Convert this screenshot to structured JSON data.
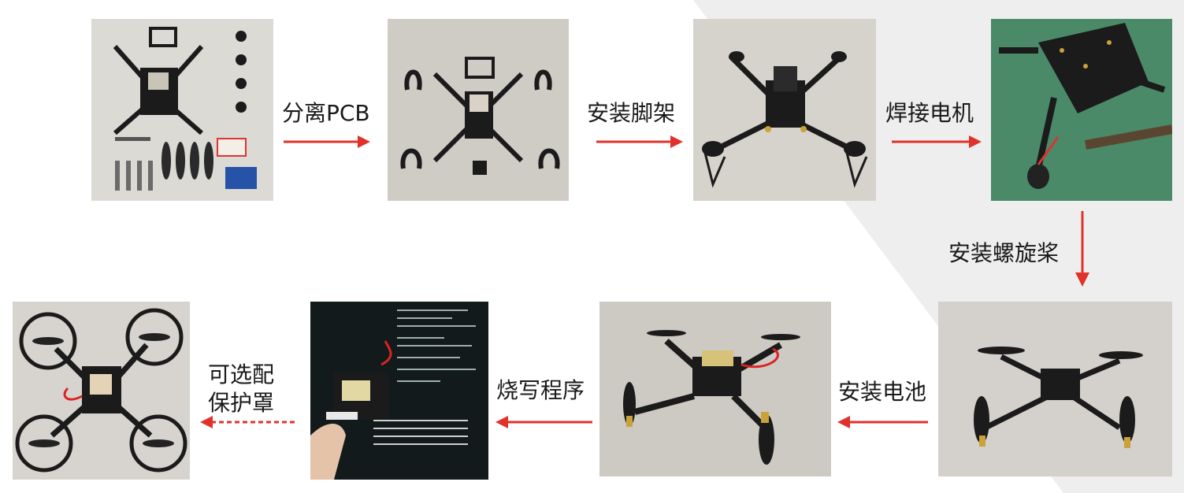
{
  "steps": [
    {
      "id": "separate-pcb",
      "label": "分离PCB"
    },
    {
      "id": "install-legs",
      "label": "安装脚架"
    },
    {
      "id": "solder-motors",
      "label": "焊接电机"
    },
    {
      "id": "install-propellers",
      "label": "安装螺旋桨"
    },
    {
      "id": "install-battery",
      "label": "安装电池"
    },
    {
      "id": "flash-program",
      "label": "烧写程序"
    },
    {
      "id": "optional-guard",
      "label": "可选配保护罩"
    }
  ],
  "colors": {
    "arrow": "#e0322b",
    "background_shade": "#eeeeee",
    "pcb": "#1b1b1b",
    "gold": "#c9a23a"
  },
  "icons": [
    "drone-photo",
    "parts-kit-photo",
    "soldering-photo",
    "terminal-photo"
  ]
}
